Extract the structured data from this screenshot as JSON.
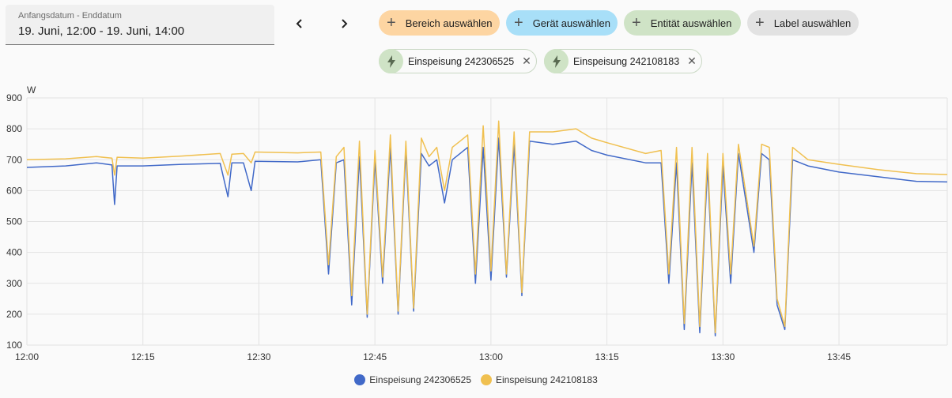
{
  "date_range": {
    "label": "Anfangsdatum - Enddatum",
    "value": "19. Juni, 12:00 - 19. Juni, 14:00"
  },
  "filters": {
    "area": "Bereich auswählen",
    "device": "Gerät auswählen",
    "entity": "Entität auswählen",
    "label": "Label auswählen"
  },
  "colors": {
    "area": "#fdd5a2",
    "device": "#a8dff8",
    "entity": "#cfe3c6",
    "label": "#e2e2e2",
    "series1": "#4169c8",
    "series2": "#f0c050"
  },
  "selected_entities": [
    {
      "name": "Einspeisung 242306525",
      "icon": "flash-icon"
    },
    {
      "name": "Einspeisung 242108183",
      "icon": "flash-icon"
    }
  ],
  "chart_data": {
    "type": "line",
    "ylabel": "W",
    "ylim": [
      100,
      900
    ],
    "yticks": [
      100,
      200,
      300,
      400,
      500,
      600,
      700,
      800,
      900
    ],
    "xlim": [
      "12:00",
      "13:59"
    ],
    "xticks": [
      "12:00",
      "12:15",
      "12:30",
      "12:45",
      "13:00",
      "13:15",
      "13:30",
      "13:45"
    ],
    "grid": true,
    "legend_position": "bottom",
    "series": [
      {
        "name": "Einspeisung 242306525",
        "color": "#4169c8",
        "points": [
          [
            "12:00",
            675
          ],
          [
            "12:05",
            680
          ],
          [
            "12:09",
            690
          ],
          [
            "12:11",
            683
          ],
          [
            "12:11:20",
            555
          ],
          [
            "12:11:40",
            680
          ],
          [
            "12:15",
            680
          ],
          [
            "12:20",
            685
          ],
          [
            "12:25",
            688
          ],
          [
            "12:26",
            580
          ],
          [
            "12:26:30",
            690
          ],
          [
            "12:28",
            690
          ],
          [
            "12:29",
            600
          ],
          [
            "12:29:30",
            695
          ],
          [
            "12:35",
            693
          ],
          [
            "12:38",
            700
          ],
          [
            "12:39",
            330
          ],
          [
            "12:40",
            690
          ],
          [
            "12:41",
            700
          ],
          [
            "12:42",
            230
          ],
          [
            "12:43",
            710
          ],
          [
            "12:44",
            190
          ],
          [
            "12:45",
            700
          ],
          [
            "12:46",
            300
          ],
          [
            "12:47",
            740
          ],
          [
            "12:48",
            200
          ],
          [
            "12:49",
            730
          ],
          [
            "12:50",
            210
          ],
          [
            "12:51",
            720
          ],
          [
            "12:52",
            680
          ],
          [
            "12:53",
            700
          ],
          [
            "12:54",
            560
          ],
          [
            "12:55",
            700
          ],
          [
            "12:56",
            720
          ],
          [
            "12:57",
            740
          ],
          [
            "12:58",
            300
          ],
          [
            "12:59",
            740
          ],
          [
            "13:00",
            310
          ],
          [
            "13:01",
            770
          ],
          [
            "13:02",
            320
          ],
          [
            "13:03",
            750
          ],
          [
            "13:04",
            260
          ],
          [
            "13:05",
            760
          ],
          [
            "13:08",
            750
          ],
          [
            "13:11",
            760
          ],
          [
            "13:13",
            730
          ],
          [
            "13:15",
            715
          ],
          [
            "13:20",
            690
          ],
          [
            "13:22",
            690
          ],
          [
            "13:23",
            300
          ],
          [
            "13:24",
            690
          ],
          [
            "13:25",
            150
          ],
          [
            "13:26",
            690
          ],
          [
            "13:27",
            140
          ],
          [
            "13:28",
            680
          ],
          [
            "13:29",
            130
          ],
          [
            "13:30",
            680
          ],
          [
            "13:31",
            300
          ],
          [
            "13:32",
            720
          ],
          [
            "13:34",
            400
          ],
          [
            "13:35",
            720
          ],
          [
            "13:36",
            700
          ],
          [
            "13:37",
            230
          ],
          [
            "13:38",
            150
          ],
          [
            "13:39",
            700
          ],
          [
            "13:40",
            690
          ],
          [
            "13:41",
            680
          ],
          [
            "13:45",
            660
          ],
          [
            "13:50",
            645
          ],
          [
            "13:55",
            630
          ],
          [
            "13:59",
            628
          ]
        ]
      },
      {
        "name": "Einspeisung 242108183",
        "color": "#f0c050",
        "points": [
          [
            "12:00",
            700
          ],
          [
            "12:05",
            703
          ],
          [
            "12:09",
            710
          ],
          [
            "12:11",
            705
          ],
          [
            "12:11:20",
            650
          ],
          [
            "12:11:40",
            708
          ],
          [
            "12:15",
            705
          ],
          [
            "12:20",
            712
          ],
          [
            "12:25",
            720
          ],
          [
            "12:26",
            650
          ],
          [
            "12:26:30",
            718
          ],
          [
            "12:28",
            720
          ],
          [
            "12:29",
            690
          ],
          [
            "12:29:30",
            725
          ],
          [
            "12:35",
            722
          ],
          [
            "12:38",
            725
          ],
          [
            "12:39",
            360
          ],
          [
            "12:40",
            710
          ],
          [
            "12:41",
            740
          ],
          [
            "12:42",
            260
          ],
          [
            "12:43",
            760
          ],
          [
            "12:44",
            200
          ],
          [
            "12:45",
            730
          ],
          [
            "12:46",
            320
          ],
          [
            "12:47",
            780
          ],
          [
            "12:48",
            210
          ],
          [
            "12:49",
            760
          ],
          [
            "12:50",
            220
          ],
          [
            "12:51",
            770
          ],
          [
            "12:52",
            710
          ],
          [
            "12:53",
            740
          ],
          [
            "12:54",
            600
          ],
          [
            "12:55",
            740
          ],
          [
            "12:56",
            760
          ],
          [
            "12:57",
            780
          ],
          [
            "12:58",
            330
          ],
          [
            "12:59",
            810
          ],
          [
            "13:00",
            340
          ],
          [
            "13:01",
            825
          ],
          [
            "13:02",
            330
          ],
          [
            "13:03",
            790
          ],
          [
            "13:04",
            270
          ],
          [
            "13:05",
            790
          ],
          [
            "13:08",
            790
          ],
          [
            "13:11",
            800
          ],
          [
            "13:13",
            770
          ],
          [
            "13:15",
            755
          ],
          [
            "13:20",
            720
          ],
          [
            "13:22",
            730
          ],
          [
            "13:23",
            330
          ],
          [
            "13:24",
            740
          ],
          [
            "13:25",
            170
          ],
          [
            "13:26",
            740
          ],
          [
            "13:27",
            160
          ],
          [
            "13:28",
            720
          ],
          [
            "13:29",
            140
          ],
          [
            "13:30",
            720
          ],
          [
            "13:31",
            330
          ],
          [
            "13:32",
            750
          ],
          [
            "13:34",
            420
          ],
          [
            "13:35",
            750
          ],
          [
            "13:36",
            740
          ],
          [
            "13:37",
            250
          ],
          [
            "13:38",
            160
          ],
          [
            "13:39",
            740
          ],
          [
            "13:40",
            720
          ],
          [
            "13:41",
            700
          ],
          [
            "13:45",
            685
          ],
          [
            "13:50",
            668
          ],
          [
            "13:55",
            655
          ],
          [
            "13:59",
            652
          ]
        ]
      }
    ]
  }
}
